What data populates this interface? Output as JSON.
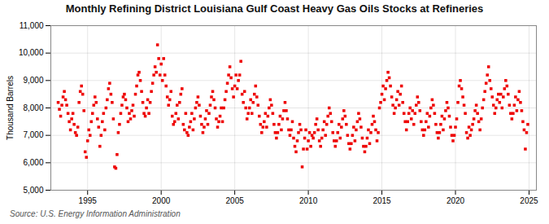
{
  "chart_data": {
    "type": "scatter",
    "title": "Monthly Refining District Louisiana Gulf Coast Heavy Gas Oils Stocks at Refineries",
    "ylabel": "Thousand Barrels",
    "caption": "Source: U.S. Energy Information Administration",
    "color": "#EE0000",
    "marker": "square",
    "grid": true,
    "xlim": [
      1992.5,
      2025.5
    ],
    "xticks": [
      1995,
      2000,
      2005,
      2010,
      2015,
      2020,
      2025
    ],
    "ylim": [
      5000,
      11000
    ],
    "yticks": [
      {
        "value": 5000,
        "label": "5,000"
      },
      {
        "value": 6000,
        "label": "6,000"
      },
      {
        "value": 7000,
        "label": "7,000"
      },
      {
        "value": 8000,
        "label": "8,000"
      },
      {
        "value": 9000,
        "label": "9,000"
      },
      {
        "value": 10000,
        "label": "10,000"
      },
      {
        "value": 11000,
        "label": "11,000"
      }
    ],
    "x": [
      1993.0,
      1993.083,
      1993.167,
      1993.25,
      1993.333,
      1993.417,
      1993.5,
      1993.583,
      1993.667,
      1993.75,
      1993.833,
      1993.917,
      1994.0,
      1994.083,
      1994.167,
      1994.25,
      1994.333,
      1994.417,
      1994.5,
      1994.583,
      1994.667,
      1994.75,
      1994.833,
      1994.917,
      1995.0,
      1995.083,
      1995.167,
      1995.25,
      1995.333,
      1995.417,
      1995.5,
      1995.583,
      1995.667,
      1995.75,
      1995.833,
      1995.917,
      1996.0,
      1996.083,
      1996.167,
      1996.25,
      1996.333,
      1996.417,
      1996.5,
      1996.583,
      1996.667,
      1996.75,
      1996.833,
      1996.917,
      1997.0,
      1997.083,
      1997.167,
      1997.25,
      1997.333,
      1997.417,
      1997.5,
      1997.583,
      1997.667,
      1997.75,
      1997.833,
      1997.917,
      1998.0,
      1998.083,
      1998.167,
      1998.25,
      1998.333,
      1998.417,
      1998.5,
      1998.583,
      1998.667,
      1998.75,
      1998.833,
      1998.917,
      1999.0,
      1999.083,
      1999.167,
      1999.25,
      1999.333,
      1999.417,
      1999.5,
      1999.583,
      1999.667,
      1999.75,
      1999.833,
      1999.917,
      2000.0,
      2000.083,
      2000.167,
      2000.25,
      2000.333,
      2000.417,
      2000.5,
      2000.583,
      2000.667,
      2000.75,
      2000.833,
      2000.917,
      2001.0,
      2001.083,
      2001.167,
      2001.25,
      2001.333,
      2001.417,
      2001.5,
      2001.583,
      2001.667,
      2001.75,
      2001.833,
      2001.917,
      2002.0,
      2002.083,
      2002.167,
      2002.25,
      2002.333,
      2002.417,
      2002.5,
      2002.583,
      2002.667,
      2002.75,
      2002.833,
      2002.917,
      2003.0,
      2003.083,
      2003.167,
      2003.25,
      2003.333,
      2003.417,
      2003.5,
      2003.583,
      2003.667,
      2003.75,
      2003.833,
      2003.917,
      2004.0,
      2004.083,
      2004.167,
      2004.25,
      2004.333,
      2004.417,
      2004.5,
      2004.583,
      2004.667,
      2004.75,
      2004.833,
      2004.917,
      2005.0,
      2005.083,
      2005.167,
      2005.25,
      2005.333,
      2005.417,
      2005.5,
      2005.583,
      2005.667,
      2005.75,
      2005.833,
      2005.917,
      2006.0,
      2006.083,
      2006.167,
      2006.25,
      2006.333,
      2006.417,
      2006.5,
      2006.583,
      2006.667,
      2006.75,
      2006.833,
      2006.917,
      2007.0,
      2007.083,
      2007.167,
      2007.25,
      2007.333,
      2007.417,
      2007.5,
      2007.583,
      2007.667,
      2007.75,
      2007.833,
      2007.917,
      2008.0,
      2008.083,
      2008.167,
      2008.25,
      2008.333,
      2008.417,
      2008.5,
      2008.583,
      2008.667,
      2008.75,
      2008.833,
      2008.917,
      2009.0,
      2009.083,
      2009.167,
      2009.25,
      2009.333,
      2009.417,
      2009.5,
      2009.583,
      2009.667,
      2009.75,
      2009.833,
      2009.917,
      2010.0,
      2010.083,
      2010.167,
      2010.25,
      2010.333,
      2010.417,
      2010.5,
      2010.583,
      2010.667,
      2010.75,
      2010.833,
      2010.917,
      2011.0,
      2011.083,
      2011.167,
      2011.25,
      2011.333,
      2011.417,
      2011.5,
      2011.583,
      2011.667,
      2011.75,
      2011.833,
      2011.917,
      2012.0,
      2012.083,
      2012.167,
      2012.25,
      2012.333,
      2012.417,
      2012.5,
      2012.583,
      2012.667,
      2012.75,
      2012.833,
      2012.917,
      2013.0,
      2013.083,
      2013.167,
      2013.25,
      2013.333,
      2013.417,
      2013.5,
      2013.583,
      2013.667,
      2013.75,
      2013.833,
      2013.917,
      2014.0,
      2014.083,
      2014.167,
      2014.25,
      2014.333,
      2014.417,
      2014.5,
      2014.583,
      2014.667,
      2014.75,
      2014.833,
      2014.917,
      2015.0,
      2015.083,
      2015.167,
      2015.25,
      2015.333,
      2015.417,
      2015.5,
      2015.583,
      2015.667,
      2015.75,
      2015.833,
      2015.917,
      2016.0,
      2016.083,
      2016.167,
      2016.25,
      2016.333,
      2016.417,
      2016.5,
      2016.583,
      2016.667,
      2016.75,
      2016.833,
      2016.917,
      2017.0,
      2017.083,
      2017.167,
      2017.25,
      2017.333,
      2017.417,
      2017.5,
      2017.583,
      2017.667,
      2017.75,
      2017.833,
      2017.917,
      2018.0,
      2018.083,
      2018.167,
      2018.25,
      2018.333,
      2018.417,
      2018.5,
      2018.583,
      2018.667,
      2018.75,
      2018.833,
      2018.917,
      2019.0,
      2019.083,
      2019.167,
      2019.25,
      2019.333,
      2019.417,
      2019.5,
      2019.583,
      2019.667,
      2019.75,
      2019.833,
      2019.917,
      2020.0,
      2020.083,
      2020.167,
      2020.25,
      2020.333,
      2020.417,
      2020.5,
      2020.583,
      2020.667,
      2020.75,
      2020.833,
      2020.917,
      2021.0,
      2021.083,
      2021.167,
      2021.25,
      2021.333,
      2021.417,
      2021.5,
      2021.583,
      2021.667,
      2021.75,
      2021.833,
      2021.917,
      2022.0,
      2022.083,
      2022.167,
      2022.25,
      2022.333,
      2022.417,
      2022.5,
      2022.583,
      2022.667,
      2022.75,
      2022.833,
      2022.917,
      2023.0,
      2023.083,
      2023.167,
      2023.25,
      2023.333,
      2023.417,
      2023.5,
      2023.583,
      2023.667,
      2023.75,
      2023.833,
      2023.917,
      2024.0,
      2024.083,
      2024.167,
      2024.25,
      2024.333,
      2024.417,
      2024.5,
      2024.583,
      2024.667,
      2024.75,
      2024.833,
      2024.917
    ],
    "values": [
      8200,
      7950,
      7700,
      8100,
      8400,
      8600,
      8300,
      8100,
      7800,
      7500,
      7200,
      7600,
      7800,
      7400,
      7100,
      7000,
      7300,
      8200,
      8600,
      8800,
      8500,
      7900,
      6400,
      6200,
      6800,
      7200,
      7000,
      7500,
      7800,
      8100,
      8400,
      8200,
      7600,
      7300,
      6600,
      7000,
      7500,
      7800,
      7200,
      8000,
      8300,
      8700,
      8900,
      8500,
      8200,
      7600,
      5850,
      5800,
      6300,
      7100,
      7400,
      7800,
      8100,
      8400,
      8500,
      8300,
      8000,
      7500,
      7800,
      7600,
      7900,
      8100,
      7700,
      8500,
      8800,
      9200,
      9300,
      9000,
      8600,
      8200,
      7800,
      7700,
      8000,
      8300,
      7800,
      8200,
      8600,
      8900,
      9200,
      9500,
      9300,
      10300,
      9800,
      9200,
      9600,
      9000,
      9800,
      9200,
      8800,
      8400,
      8100,
      8300,
      8600,
      7700,
      7400,
      7500,
      7800,
      8100,
      7600,
      8200,
      8500,
      8700,
      7400,
      7200,
      7800,
      7100,
      7000,
      7300,
      7500,
      7800,
      7200,
      7600,
      8000,
      8200,
      8400,
      8100,
      7700,
      7400,
      7100,
      7300,
      7600,
      7900,
      7400,
      7800,
      8100,
      8400,
      8600,
      8300,
      8000,
      7600,
      7300,
      7500,
      7700,
      8000,
      7500,
      8000,
      8300,
      8600,
      8900,
      9200,
      9500,
      9100,
      8700,
      8400,
      8800,
      9200,
      8700,
      9000,
      9200,
      9700,
      8500,
      8200,
      8600,
      8000,
      7600,
      7800,
      8000,
      8300,
      7800,
      8200,
      8500,
      8800,
      8400,
      8100,
      7700,
      7400,
      7100,
      7300,
      7500,
      7800,
      7300,
      7700,
      8000,
      8300,
      8100,
      7800,
      7400,
      7100,
      6900,
      7100,
      7400,
      7700,
      7200,
      7600,
      7900,
      8200,
      7900,
      7600,
      7200,
      7000,
      7200,
      7500,
      6900,
      6600,
      6400,
      6800,
      7100,
      7400,
      7200,
      5850,
      6500,
      6900,
      7200,
      6500,
      6800,
      7100,
      6600,
      7000,
      6900,
      7100,
      7400,
      7600,
      7200,
      6800,
      6600,
      6900,
      7200,
      7500,
      7000,
      7400,
      7700,
      8000,
      7800,
      7500,
      7100,
      6800,
      6600,
      6800,
      7100,
      7400,
      6900,
      7300,
      7600,
      7900,
      7700,
      7400,
      7000,
      6700,
      6500,
      6700,
      7000,
      7300,
      6800,
      7200,
      7500,
      7800,
      7600,
      7300,
      6900,
      6600,
      6400,
      6600,
      6900,
      7200,
      6700,
      7100,
      7400,
      7700,
      7500,
      7200,
      6800,
      7100,
      8000,
      8200,
      8500,
      8800,
      8300,
      8700,
      9000,
      9300,
      9100,
      8800,
      8400,
      8100,
      7800,
      8000,
      8300,
      8600,
      8100,
      8500,
      8800,
      8200,
      7800,
      7500,
      7200,
      7500,
      7800,
      8000,
      7600,
      7900,
      7400,
      7800,
      8100,
      8400,
      8200,
      7900,
      7500,
      7200,
      7000,
      7200,
      7500,
      7800,
      7300,
      7700,
      8000,
      8300,
      8100,
      7800,
      7400,
      7100,
      6900,
      7100,
      7400,
      7700,
      7200,
      7600,
      7900,
      8200,
      8000,
      7700,
      7300,
      7000,
      6800,
      7000,
      7300,
      7600,
      8200,
      8800,
      9000,
      8700,
      8400,
      8100,
      7800,
      7100,
      6900,
      7300,
      7000,
      7200,
      7400,
      7600,
      7900,
      8100,
      7800,
      7500,
      7200,
      7600,
      8000,
      8300,
      8600,
      8900,
      9200,
      9500,
      9000,
      8700,
      8400,
      8100,
      7800,
      8000,
      8300,
      8500,
      8200,
      8500,
      8000,
      8400,
      8700,
      9000,
      8800,
      8500,
      8100,
      7800,
      7600,
      7800,
      8100,
      8400,
      7900,
      8300,
      8600,
      8200,
      7900,
      7500,
      7200,
      6500,
      7100,
      7400
    ]
  }
}
